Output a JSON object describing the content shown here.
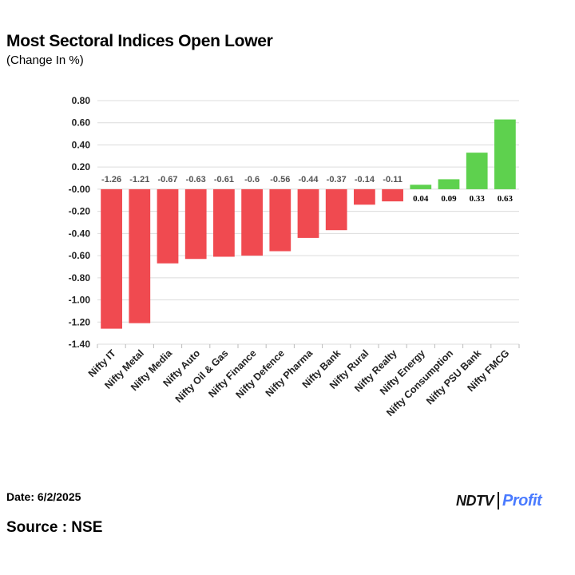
{
  "chart_data": {
    "type": "bar",
    "title": "Most Sectoral Indices Open Lower",
    "subtitle": "(Change In %)",
    "categories": [
      "Nifty IT",
      "Nifty Metal",
      "Nifty Media",
      "Nifty Auto",
      "Nifty Oil & Gas",
      "Nifty Finance",
      "Nifty Defence",
      "Nifty Pharma",
      "Nifty Bank",
      "Nifty Rural",
      "Nifty Realty",
      "Nifty Energy",
      "Nifty Consumption",
      "Nifty PSU Bank",
      "Nifty FMCG"
    ],
    "values": [
      -1.26,
      -1.21,
      -0.67,
      -0.63,
      -0.61,
      -0.6,
      -0.56,
      -0.44,
      -0.37,
      -0.14,
      -0.11,
      0.04,
      0.09,
      0.33,
      0.63
    ],
    "data_labels": [
      "-1.26",
      "-1.21",
      "-0.67",
      "-0.63",
      "-0.61",
      "-0.6",
      "-0.56",
      "-0.44",
      "-0.37",
      "-0.14",
      "-0.11",
      "0.04",
      "0.09",
      "0.33",
      "0.63"
    ],
    "yticks": [
      "0.80",
      "0.60",
      "0.40",
      "0.20",
      "-0.00",
      "-0.20",
      "-0.40",
      "-0.60",
      "-0.80",
      "-1.00",
      "-1.20",
      "-1.40"
    ],
    "ylim": [
      -1.4,
      0.8
    ],
    "ytick_step": 0.2,
    "grid": true,
    "xlabel": "",
    "ylabel": "",
    "colors": {
      "negative": "#f04a50",
      "positive": "#5ed14e"
    }
  },
  "footer": {
    "date": "Date: 6/2/2025",
    "source": "Source : NSE",
    "logo_left": "NDTV",
    "logo_right": "Profit"
  }
}
